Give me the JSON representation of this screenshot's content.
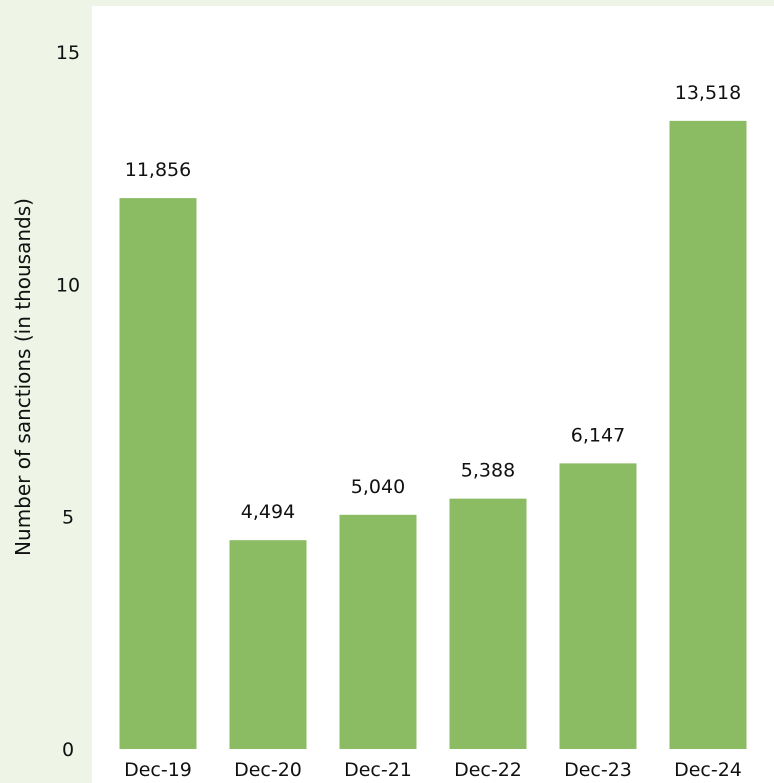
{
  "chart_data": {
    "type": "bar",
    "categories": [
      "Dec-19",
      "Dec-20",
      "Dec-21",
      "Dec-22",
      "Dec-23",
      "Dec-24"
    ],
    "values": [
      11856,
      4494,
      5040,
      5388,
      6147,
      13518
    ],
    "value_labels": [
      "11,856",
      "4,494",
      "5,040",
      "5,388",
      "6,147",
      "13,518"
    ],
    "ylabel": "Number of sanctions (in thousands)",
    "yticks": [
      "0",
      "5",
      "10",
      "15"
    ],
    "ylim": [
      0,
      15000
    ],
    "ytick_values": [
      0,
      5000,
      10000,
      15000
    ],
    "grid": false,
    "colors": {
      "bar": "#8bbb62",
      "plot_background": "#ffffff",
      "page_background": "#eef5e6"
    }
  }
}
